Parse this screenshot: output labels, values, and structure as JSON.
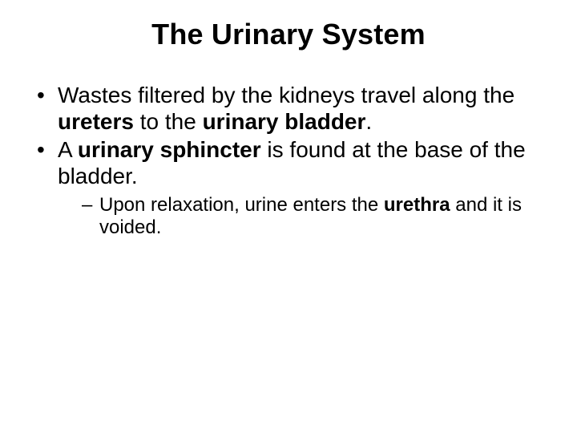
{
  "slide": {
    "title": "The Urinary System",
    "bullets": [
      {
        "segments": [
          {
            "text": "Wastes filtered by the kidneys travel along the ",
            "bold": false
          },
          {
            "text": "ureters",
            "bold": true
          },
          {
            "text": " to the ",
            "bold": false
          },
          {
            "text": "urinary bladder",
            "bold": true
          },
          {
            "text": ".",
            "bold": false
          }
        ]
      },
      {
        "segments": [
          {
            "text": "A ",
            "bold": false
          },
          {
            "text": "urinary sphincter",
            "bold": true
          },
          {
            "text": " is found at the base of the bladder.",
            "bold": false
          }
        ],
        "sub": [
          {
            "segments": [
              {
                "text": "Upon relaxation, urine enters the ",
                "bold": false
              },
              {
                "text": "urethra",
                "bold": true
              },
              {
                "text": " and it is voided.",
                "bold": false
              }
            ]
          }
        ]
      }
    ]
  },
  "style": {
    "background_color": "#ffffff",
    "text_color": "#000000",
    "font_family": "Arial",
    "title_fontsize": 36,
    "body_fontsize": 28,
    "sub_fontsize": 24
  }
}
